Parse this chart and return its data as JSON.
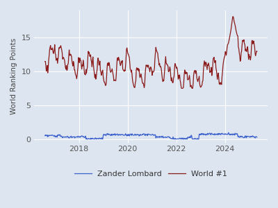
{
  "title": "",
  "ylabel": "World Ranking Points",
  "xlabel": "",
  "background_color": "#dde6f0",
  "fig_background": "#dde6f0",
  "grid_color": "#ffffff",
  "world1_color": "#8b1a1a",
  "lombard_color": "#3a5fcd",
  "legend_labels": [
    "Zander Lombard",
    "World #1"
  ],
  "xtick_labels": [
    "2018",
    "2020",
    "2022",
    "2024"
  ],
  "ytick_labels": [
    0,
    5,
    10,
    15
  ],
  "ylim": [
    -0.5,
    19
  ],
  "linewidth_world1": 0.9,
  "linewidth_lombard": 0.9
}
